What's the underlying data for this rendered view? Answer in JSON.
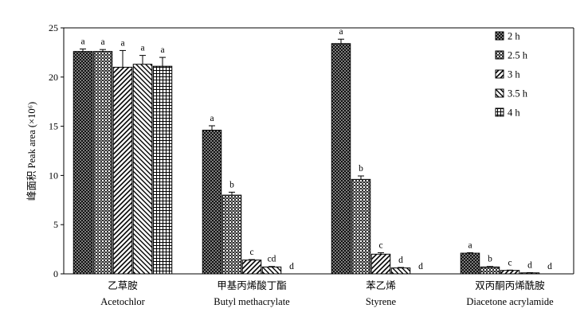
{
  "chart_data": {
    "type": "bar",
    "ylabel": "峰面积 Peak area (×10⁶)",
    "ylim": [
      0,
      25
    ],
    "yticks": [
      0,
      5,
      10,
      15,
      20,
      25
    ],
    "grid": false,
    "legend_position": "top-right",
    "categories": [
      {
        "cn": "乙草胺",
        "en": "Acetochlor"
      },
      {
        "cn": "甲基丙烯酸丁酯",
        "en": "Butyl methacrylate"
      },
      {
        "cn": "苯乙烯",
        "en": "Styrene"
      },
      {
        "cn": "双丙酮丙烯酰胺",
        "en": "Diacetone acrylamide"
      }
    ],
    "series": [
      {
        "name": "2 h",
        "pattern": "dots-dark",
        "values": [
          22.6,
          14.6,
          23.4,
          2.1
        ],
        "errors": [
          0.25,
          0.45,
          0.45,
          0.05
        ],
        "letters": [
          "a",
          "a",
          "a",
          "a"
        ]
      },
      {
        "name": "2.5 h",
        "pattern": "checker",
        "values": [
          22.6,
          8.0,
          9.6,
          0.7
        ],
        "errors": [
          0.2,
          0.3,
          0.35,
          0.05
        ],
        "letters": [
          "a",
          "b",
          "b",
          "b"
        ]
      },
      {
        "name": "3 h",
        "pattern": "diag-up",
        "values": [
          21.0,
          1.4,
          2.0,
          0.35
        ],
        "errors": [
          1.7,
          0.05,
          0.15,
          0.03
        ],
        "letters": [
          "a",
          "c",
          "c",
          "c"
        ]
      },
      {
        "name": "3.5 h",
        "pattern": "diag-down",
        "values": [
          21.3,
          0.7,
          0.6,
          0.1
        ],
        "errors": [
          0.9,
          0.05,
          0.05,
          0.02
        ],
        "letters": [
          "a",
          "cd",
          "d",
          "d"
        ]
      },
      {
        "name": "4 h",
        "pattern": "grid",
        "values": [
          21.1,
          0.0,
          0.0,
          0.0
        ],
        "errors": [
          0.9,
          0,
          0,
          0
        ],
        "letters": [
          "a",
          "d",
          "d",
          "d"
        ]
      }
    ]
  }
}
